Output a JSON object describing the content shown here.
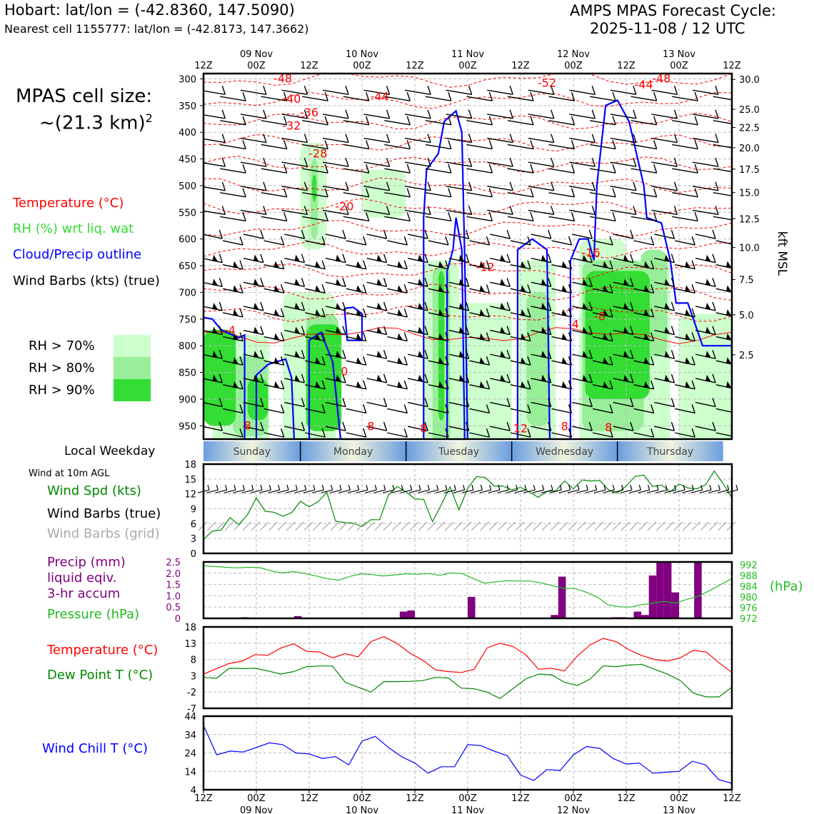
{
  "header": {
    "location": "Hobart: lat/lon = (-42.8360, 147.5090)",
    "nearest_cell": "Nearest cell 1155777: lat/lon = (-42.8173, 147.3662)",
    "cycle_line1": "AMPS MPAS Forecast Cycle:",
    "cycle_line2": "2025-11-08 / 12 UTC"
  },
  "sidebar": {
    "cell_size_line1": "MPAS cell size:",
    "cell_size_line2": "~(21.3 km)",
    "cell_size_exp": "2",
    "legend": [
      {
        "label": "Temperature (°C)",
        "color": "#ff0000"
      },
      {
        "label": "RH (%) wrt liq. wat",
        "color": "#33dd33"
      },
      {
        "label": "Cloud/Precip outline",
        "color": "#0000ff"
      },
      {
        "label": "Wind Barbs (kts) (true)",
        "color": "#000000"
      }
    ],
    "rh_legend": [
      {
        "label": "RH > 70%",
        "color": "#ccffcc"
      },
      {
        "label": "RH > 80%",
        "color": "#99ee99"
      },
      {
        "label": "RH > 90%",
        "color": "#33dd33"
      }
    ],
    "weekday_label": "Local Weekday",
    "wind10_title": "Wind at 10m AGL",
    "wind_legend": [
      {
        "label": "Wind Spd (kts)",
        "color": "#008800"
      },
      {
        "label": "Wind Barbs (true)",
        "color": "#000000"
      },
      {
        "label": "Wind Barbs (grid)",
        "color": "#aaaaaa"
      }
    ],
    "precip_legend": [
      {
        "label": "Precip (mm)",
        "color": "#800080"
      },
      {
        "label": "liquid eqiv.",
        "color": "#800080"
      },
      {
        "label": "3-hr accum",
        "color": "#800080"
      },
      {
        "label": "Pressure (hPa)",
        "color": "#22bb22"
      }
    ],
    "temp_legend": [
      {
        "label": "Temperature (°C)",
        "color": "#ff0000"
      },
      {
        "label": "Dew Point T (°C)",
        "color": "#008800"
      }
    ],
    "chill_legend": [
      {
        "label": "Wind Chill T (°C)",
        "color": "#0000ff"
      }
    ]
  },
  "chart_data": {
    "time_ticks": [
      "12Z",
      "00Z",
      "12Z",
      "00Z",
      "12Z",
      "00Z",
      "12Z",
      "00Z",
      "12Z",
      "00Z",
      "12Z"
    ],
    "date_ticks": [
      "09 Nov",
      "10 Nov",
      "11 Nov",
      "12 Nov",
      "13 Nov"
    ],
    "weekdays": [
      "Sunday",
      "Monday",
      "Tuesday",
      "Wednesday",
      "Thursday"
    ],
    "hours": [
      0,
      6,
      12,
      18,
      24,
      30,
      36,
      42,
      48,
      54,
      60,
      66,
      72,
      78,
      84,
      90,
      96,
      102,
      108,
      114,
      120,
      126,
      132,
      138,
      144,
      150,
      156,
      162,
      168,
      174,
      180,
      186,
      192,
      198,
      204,
      210,
      216,
      222,
      228,
      234,
      240,
      246,
      252,
      258,
      264,
      270,
      276,
      282,
      288,
      294,
      300,
      306,
      312,
      318,
      324,
      330,
      336,
      342,
      348,
      354,
      360
    ],
    "sounding": {
      "type": "time-height",
      "pressure_ticks": [
        300,
        350,
        400,
        450,
        500,
        550,
        600,
        650,
        700,
        750,
        800,
        850,
        900,
        950
      ],
      "pressure_range": [
        975,
        290
      ],
      "kft_ticks": [
        "30.0",
        "25.0",
        "22.5",
        "20.0",
        "17.5",
        "15.0",
        "12.5",
        "10.0",
        "7.5",
        "5.0",
        "2.5"
      ],
      "kft_pressures": [
        301,
        357,
        391,
        429,
        469,
        513,
        562,
        616,
        676,
        742,
        817,
        899,
        980
      ],
      "right_label": "kft MSL",
      "temp_labels": [
        {
          "text": "-48",
          "t": 54,
          "p": 307
        },
        {
          "text": "-52",
          "t": 234,
          "p": 315
        },
        {
          "text": "-44",
          "t": 300,
          "p": 318
        },
        {
          "text": "-48",
          "t": 312,
          "p": 307
        },
        {
          "text": "-40",
          "t": 60,
          "p": 345
        },
        {
          "text": "-44",
          "t": 120,
          "p": 340
        },
        {
          "text": "-36",
          "t": 72,
          "p": 370
        },
        {
          "text": "-32",
          "t": 60,
          "p": 395
        },
        {
          "text": "-28",
          "t": 78,
          "p": 447
        },
        {
          "text": "-20",
          "t": 96,
          "p": 546
        },
        {
          "text": "-12",
          "t": 192,
          "p": 660
        },
        {
          "text": "-16",
          "t": 264,
          "p": 633
        },
        {
          "text": "-8",
          "t": 270,
          "p": 752
        },
        {
          "text": "-4",
          "t": 252,
          "p": 767
        },
        {
          "text": "-4",
          "t": 18,
          "p": 778
        },
        {
          "text": "0",
          "t": 96,
          "p": 855
        },
        {
          "text": "8",
          "t": 30,
          "p": 957
        },
        {
          "text": "8",
          "t": 114,
          "p": 958
        },
        {
          "text": "8",
          "t": 150,
          "p": 962
        },
        {
          "text": "12",
          "t": 216,
          "p": 962
        },
        {
          "text": "8",
          "t": 246,
          "p": 958
        },
        {
          "text": "8",
          "t": 276,
          "p": 960
        }
      ]
    },
    "wind10": {
      "speed_kts": [
        2.8,
        4.5,
        4.7,
        7.2,
        5.8,
        7.8,
        11.2,
        8.5,
        8.3,
        7.5,
        8.2,
        10.5,
        9.4,
        10.4,
        12.3,
        6.5,
        6.2,
        6.1,
        5.4,
        6.8,
        6.8,
        11.8,
        13.5,
        12.4,
        11.0,
        10.9,
        6.4,
        9.8,
        13.4,
        8.8,
        13.1,
        15.5,
        15.3,
        13.6,
        13.6,
        12.8,
        13.3,
        12.4,
        11.3,
        12.5,
        12.6,
        14.6,
        13.0,
        14.8,
        14.6,
        14.7,
        12.8,
        12.2,
        13.6,
        15.5,
        15.8,
        13.5,
        13.8,
        12.4,
        14.0,
        13.2,
        13.0,
        13.8,
        16.6,
        14.1,
        11.2
      ],
      "yrange": [
        0,
        18
      ],
      "yticks": [
        0,
        3,
        6,
        9,
        12,
        15,
        18
      ]
    },
    "precip_pressure": {
      "precip_mm": [
        0,
        0,
        0,
        0,
        0,
        0.05,
        0,
        0,
        0,
        0,
        0,
        0,
        0.1,
        0,
        0,
        0,
        0,
        0,
        0,
        0,
        0,
        0,
        0,
        0,
        0,
        0,
        0.3,
        0.35,
        0,
        0,
        0,
        0,
        0,
        0,
        0,
        0.95,
        0,
        0,
        0,
        0,
        0,
        0,
        0,
        0,
        0,
        0,
        0.15,
        1.85,
        0,
        0,
        0,
        0,
        0,
        0,
        0.05,
        0.05,
        0,
        0.3,
        0.15,
        1.9,
        2.5,
        2.5,
        1.15,
        0,
        0,
        2.5,
        0,
        0,
        0,
        0
      ],
      "precip_range": [
        0,
        2.5
      ],
      "precip_ticks": [
        "0",
        "0.5",
        "1.0",
        "1.5",
        "2.0",
        "2.5"
      ],
      "pressure_hPa": [
        991.6,
        991.3,
        991.0,
        990.8,
        991.0,
        990.9,
        989.7,
        988.9,
        989.4,
        988.7,
        987.8,
        986.8,
        986.2,
        987.6,
        988.6,
        988.3,
        987.8,
        988.2,
        988.6,
        988.4,
        988.7,
        988.0,
        988.9,
        988.7,
        986.8,
        985.1,
        985.6,
        986.0,
        985.9,
        985.9,
        985.2,
        984.2,
        983.2,
        983.1,
        981.8,
        980.0,
        977.0,
        976.3,
        976.2,
        977.1,
        977.7,
        978.3,
        977.7,
        979.1,
        980.2,
        982.3,
        984.6,
        986.8
      ],
      "pressure_range": [
        972,
        993
      ],
      "pressure_ticks": [
        "992",
        "988",
        "984",
        "980",
        "976",
        "972"
      ],
      "right_label": "(hPa)"
    },
    "temp_dew": {
      "temperature_C": [
        3.5,
        5.2,
        6.8,
        7.5,
        9.5,
        9.3,
        11.5,
        12.8,
        10.5,
        10.3,
        8.5,
        9.8,
        8.8,
        13.5,
        15.0,
        13.0,
        10.0,
        7.8,
        4.8,
        4.3,
        4.0,
        5.0,
        11.5,
        13.0,
        12.0,
        9.5,
        5.0,
        5.3,
        4.5,
        9.0,
        12.5,
        14.5,
        13.5,
        11.0,
        9.2,
        8.0,
        7.5,
        8.5,
        10.8,
        10.3,
        7.0,
        4.0
      ],
      "dewpoint_C": [
        2.5,
        2.2,
        5.3,
        5.2,
        5.3,
        4.5,
        3.5,
        4.3,
        5.8,
        6.0,
        6.0,
        1.0,
        -0.5,
        -2.0,
        1.2,
        1.2,
        1.3,
        1.5,
        2.5,
        2.3,
        -0.8,
        -1.0,
        -2.0,
        -4.0,
        -1.0,
        2.0,
        3.5,
        3.3,
        1.0,
        0.0,
        2.0,
        6.0,
        5.8,
        6.3,
        6.5,
        5.0,
        3.5,
        1.5,
        -2.3,
        -3.5,
        -3.5,
        -0.5
      ],
      "yrange": [
        -7,
        18
      ],
      "yticks": [
        "18",
        "13",
        "8",
        "3",
        "-2",
        "-7"
      ]
    },
    "wind_chill": {
      "wind_chill_C": [
        39,
        23,
        25,
        24.5,
        27,
        29.5,
        28.5,
        24,
        23.5,
        21,
        22,
        17.5,
        30.5,
        33,
        27,
        22,
        18.5,
        13,
        16.5,
        16.5,
        28.5,
        28,
        25,
        22.5,
        12,
        9,
        15,
        14.5,
        23,
        27.5,
        26.5,
        21,
        18,
        18.5,
        13,
        13.5,
        14,
        19.5,
        17.5,
        9.5,
        7.5
      ],
      "yrange": [
        4,
        44
      ],
      "yticks": [
        "44",
        "34",
        "24",
        "14",
        "4"
      ]
    }
  }
}
